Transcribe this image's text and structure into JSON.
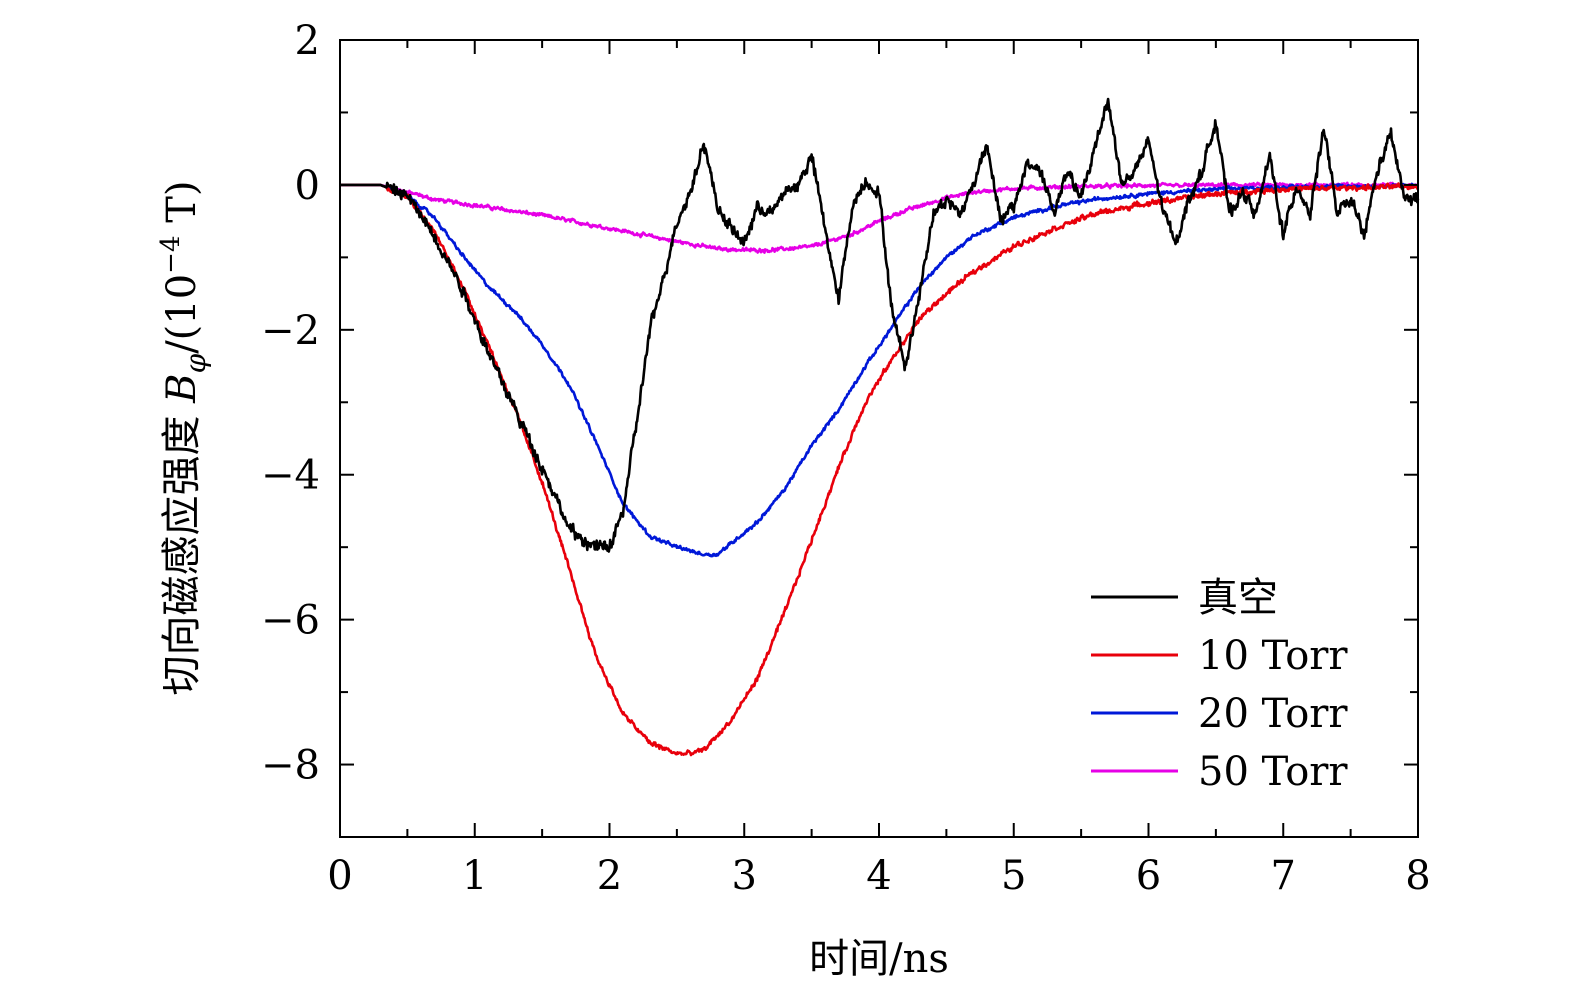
{
  "chart_data": {
    "type": "line",
    "title": "",
    "xlabel": "时间/ns",
    "ylabel_parts": {
      "prefix": "切向磁感应强度 ",
      "symbol": "B",
      "subscript": "φ",
      "unit_open": "/(10",
      "exponent": "−4",
      "unit_close": " T)"
    },
    "xlim": [
      0,
      8
    ],
    "ylim": [
      -9,
      2
    ],
    "x_ticks": [
      0,
      1,
      2,
      3,
      4,
      5,
      6,
      7,
      8
    ],
    "x_tick_labels": [
      "0",
      "1",
      "2",
      "3",
      "4",
      "5",
      "6",
      "7",
      "8"
    ],
    "y_ticks": [
      2,
      0,
      -2,
      -4,
      -6,
      -8
    ],
    "y_tick_labels": [
      "2",
      "0",
      "−2",
      "−4",
      "−6",
      "−8"
    ],
    "grid": false,
    "legend_position": "bottom-right",
    "series": [
      {
        "name": "真空",
        "color": "#000000",
        "noise": 0.12,
        "x": [
          0,
          0.3,
          0.5,
          0.7,
          0.9,
          1.1,
          1.3,
          1.5,
          1.6,
          1.7,
          1.8,
          1.9,
          2.0,
          2.1,
          2.2,
          2.3,
          2.4,
          2.5,
          2.6,
          2.7,
          2.8,
          2.9,
          3.0,
          3.1,
          3.2,
          3.3,
          3.4,
          3.5,
          3.6,
          3.7,
          3.8,
          3.9,
          4.0,
          4.1,
          4.2,
          4.3,
          4.4,
          4.5,
          4.6,
          4.7,
          4.8,
          4.9,
          5.0,
          5.1,
          5.2,
          5.3,
          5.4,
          5.5,
          5.6,
          5.7,
          5.8,
          5.9,
          6.0,
          6.1,
          6.2,
          6.3,
          6.4,
          6.5,
          6.6,
          6.7,
          6.8,
          6.9,
          7.0,
          7.1,
          7.2,
          7.3,
          7.4,
          7.5,
          7.6,
          7.7,
          7.8,
          7.9,
          8.0
        ],
        "y": [
          0,
          0,
          -0.15,
          -0.7,
          -1.4,
          -2.3,
          -3.1,
          -3.9,
          -4.3,
          -4.75,
          -4.9,
          -5.0,
          -5.0,
          -4.5,
          -3.3,
          -2.0,
          -1.3,
          -0.5,
          -0.1,
          0.6,
          -0.3,
          -0.6,
          -0.8,
          -0.3,
          -0.4,
          -0.1,
          0.0,
          0.4,
          -0.6,
          -1.6,
          -0.3,
          0.05,
          -0.1,
          -1.8,
          -2.5,
          -1.5,
          -0.4,
          -0.2,
          -0.4,
          0.0,
          0.6,
          -0.5,
          -0.3,
          0.3,
          0.2,
          -0.4,
          0.2,
          -0.2,
          0.5,
          1.2,
          0.0,
          0.2,
          0.6,
          -0.3,
          -0.8,
          -0.2,
          0.2,
          0.9,
          -0.4,
          -0.1,
          -0.4,
          0.4,
          -0.7,
          0.0,
          -0.4,
          0.8,
          -0.4,
          -0.2,
          -0.7,
          0.2,
          0.7,
          -0.2,
          -0.2
        ]
      },
      {
        "name": "10 Torr",
        "color": "#e8000b",
        "noise": 0.05,
        "x": [
          0,
          0.3,
          0.5,
          0.7,
          0.9,
          1.1,
          1.3,
          1.5,
          1.7,
          1.9,
          2.1,
          2.3,
          2.5,
          2.6,
          2.7,
          2.9,
          3.1,
          3.3,
          3.5,
          3.7,
          3.9,
          4.1,
          4.3,
          4.5,
          4.7,
          5.0,
          5.3,
          5.6,
          6.0,
          6.5,
          7.0,
          7.5,
          8.0
        ],
        "y": [
          0,
          0,
          -0.15,
          -0.65,
          -1.35,
          -2.2,
          -3.1,
          -4.1,
          -5.3,
          -6.5,
          -7.3,
          -7.7,
          -7.85,
          -7.85,
          -7.8,
          -7.4,
          -6.8,
          -5.9,
          -4.9,
          -3.9,
          -3.0,
          -2.4,
          -1.85,
          -1.5,
          -1.2,
          -0.85,
          -0.6,
          -0.4,
          -0.25,
          -0.12,
          -0.06,
          -0.04,
          -0.02
        ]
      },
      {
        "name": "20 Torr",
        "color": "#0018d8",
        "noise": 0.035,
        "x": [
          0,
          0.3,
          0.5,
          0.7,
          0.9,
          1.1,
          1.3,
          1.5,
          1.7,
          1.9,
          2.1,
          2.3,
          2.5,
          2.6,
          2.7,
          2.8,
          2.9,
          3.1,
          3.3,
          3.5,
          3.7,
          3.9,
          4.1,
          4.3,
          4.5,
          4.7,
          5.0,
          5.3,
          5.6,
          6.0,
          6.5,
          7.0,
          7.5,
          8.0
        ],
        "y": [
          0,
          0,
          -0.15,
          -0.45,
          -0.95,
          -1.4,
          -1.75,
          -2.2,
          -2.75,
          -3.55,
          -4.4,
          -4.85,
          -5.0,
          -5.05,
          -5.1,
          -5.1,
          -4.95,
          -4.65,
          -4.2,
          -3.6,
          -3.1,
          -2.5,
          -1.95,
          -1.4,
          -1.0,
          -0.7,
          -0.45,
          -0.3,
          -0.2,
          -0.12,
          -0.06,
          -0.03,
          -0.02,
          -0.01
        ]
      },
      {
        "name": "50 Torr",
        "color": "#e600e6",
        "noise": 0.035,
        "x": [
          0,
          0.3,
          0.5,
          0.7,
          1.0,
          1.5,
          2.0,
          2.5,
          2.8,
          3.0,
          3.2,
          3.5,
          3.8,
          4.0,
          4.2,
          4.5,
          4.7,
          5.0,
          5.5,
          6.0,
          7.0,
          8.0
        ],
        "y": [
          0,
          0,
          -0.1,
          -0.2,
          -0.28,
          -0.42,
          -0.6,
          -0.78,
          -0.88,
          -0.9,
          -0.9,
          -0.85,
          -0.68,
          -0.5,
          -0.35,
          -0.18,
          -0.1,
          -0.05,
          -0.02,
          -0.01,
          0,
          0
        ]
      }
    ]
  }
}
